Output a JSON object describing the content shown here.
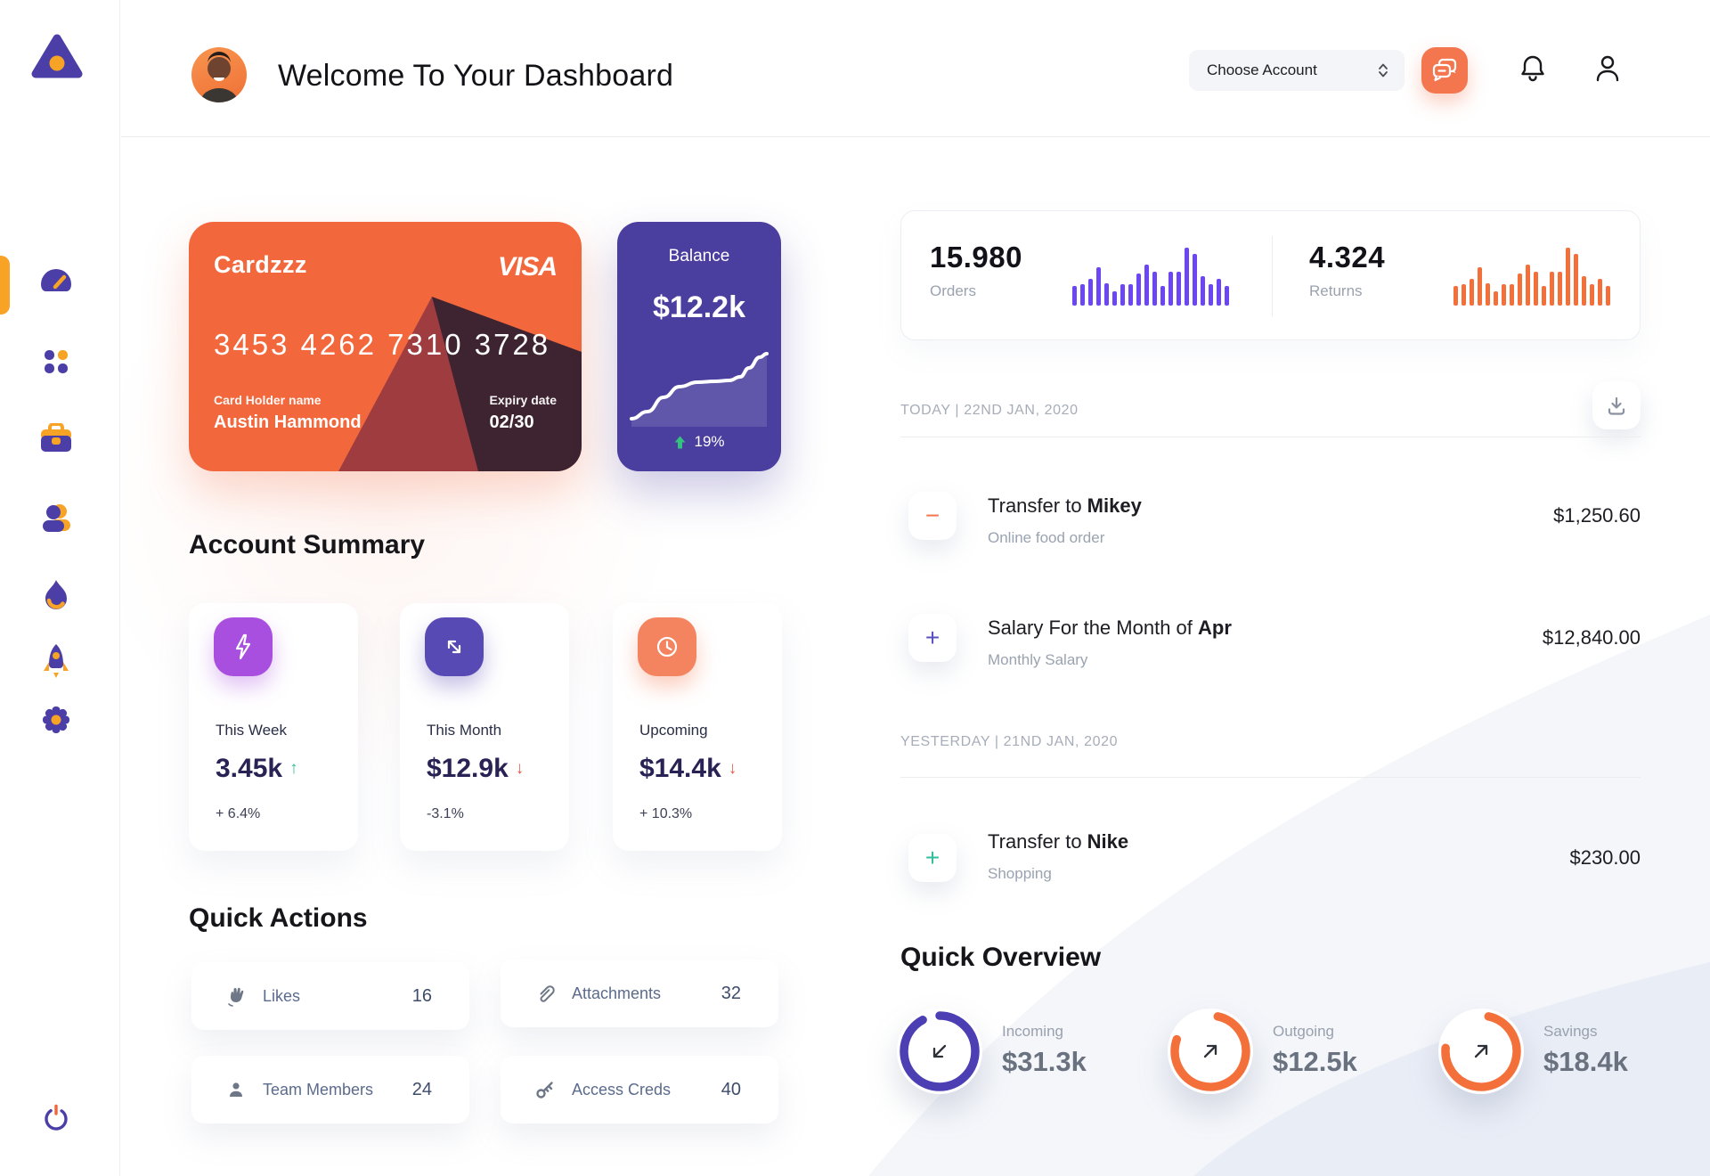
{
  "colors": {
    "sidebar_purple": "#4B3FA7",
    "accent_amber": "#F7A325",
    "bar_violet": "#6B46F2",
    "bar_orange": "#F4703B",
    "card_orange": "#F2683C",
    "balance_purple": "#4A3F9E",
    "green": "#2FBF8F",
    "red": "#E8594A"
  },
  "header": {
    "title": "Welcome To Your Dashboard",
    "account_selector": "Choose Account"
  },
  "credit_card": {
    "name": "Cardzzz",
    "brand": "VISA",
    "number": "3453 4262 7310 3728",
    "holder_label": "Card Holder name",
    "holder_name": "Austin Hammond",
    "expiry_label": "Expiry date",
    "expiry": "02/30"
  },
  "balance_card": {
    "label": "Balance",
    "value": "$12.2k",
    "change": "19%"
  },
  "stats": {
    "orders": {
      "value": "15.980",
      "label": "Orders"
    },
    "returns": {
      "value": "4.324",
      "label": "Returns"
    }
  },
  "chart_data": [
    {
      "type": "bar",
      "name": "orders-activity",
      "color": "#6B46F2",
      "ylim": [
        0,
        65
      ],
      "values": [
        22,
        24,
        30,
        43,
        25,
        16,
        24,
        24,
        36,
        46,
        38,
        22,
        38,
        38,
        65,
        58,
        33,
        24,
        30,
        22
      ]
    },
    {
      "type": "bar",
      "name": "returns-activity",
      "color": "#F4703B",
      "ylim": [
        0,
        65
      ],
      "values": [
        22,
        24,
        30,
        43,
        25,
        16,
        24,
        24,
        36,
        46,
        38,
        22,
        38,
        38,
        65,
        58,
        33,
        24,
        30,
        22
      ]
    },
    {
      "type": "line",
      "name": "balance-trend",
      "color": "#FFFFFF",
      "points": [
        [
          4,
          86
        ],
        [
          22,
          78
        ],
        [
          40,
          62
        ],
        [
          58,
          50
        ],
        [
          78,
          45
        ],
        [
          98,
          44
        ],
        [
          114,
          43
        ],
        [
          126,
          39
        ],
        [
          136,
          29
        ],
        [
          148,
          17
        ],
        [
          156,
          13
        ]
      ]
    },
    {
      "type": "donut",
      "name": "incoming",
      "percent": 92,
      "color": "#4C3FB3",
      "rotate": -90
    },
    {
      "type": "donut",
      "name": "outgoing",
      "percent": 77,
      "color": "#F4703B",
      "rotate": -78
    },
    {
      "type": "donut",
      "name": "savings",
      "percent": 73,
      "color": "#F4703B",
      "rotate": -78
    }
  ],
  "transactions": {
    "sections": [
      {
        "date_label": "TODAY | 22ND JAN, 2020",
        "rows": [
          {
            "sign": "−",
            "sign_color": "#F4764F",
            "title_prefix": "Transfer to ",
            "title_bold": "Mikey",
            "subtitle": "Online food order",
            "amount": "$1,250.60"
          },
          {
            "sign": "+",
            "sign_color": "#5B4FC0",
            "title_prefix": "Salary For the Month of ",
            "title_bold": "Apr",
            "subtitle": "Monthly Salary",
            "amount": "$12,840.00"
          }
        ]
      },
      {
        "date_label": "YESTERDAY | 21ND JAN, 2020",
        "rows": [
          {
            "sign": "+",
            "sign_color": "#2FBF9B",
            "title_prefix": "Transfer to ",
            "title_bold": "Nike",
            "subtitle": "Shopping",
            "amount": "$230.00"
          }
        ]
      }
    ]
  },
  "account_summary": {
    "heading": "Account Summary",
    "cards": [
      {
        "label": "This Week",
        "value": "3.45k",
        "arrow": "↑",
        "trend": "up",
        "delta": "+ 6.4%"
      },
      {
        "label": "This Month",
        "value": "$12.9k",
        "arrow": "↓",
        "trend": "down",
        "delta": "-3.1%"
      },
      {
        "label": "Upcoming",
        "value": "$14.4k",
        "arrow": "↓",
        "trend": "down",
        "delta": "+ 10.3%"
      }
    ]
  },
  "quick_actions": {
    "heading": "Quick Actions",
    "items": [
      {
        "label": "Likes",
        "count": "16"
      },
      {
        "label": "Attachments",
        "count": "32"
      },
      {
        "label": "Team Members",
        "count": "24"
      },
      {
        "label": "Access Creds",
        "count": "40"
      }
    ]
  },
  "quick_overview": {
    "heading": "Quick Overview",
    "items": [
      {
        "label": "Incoming",
        "value": "$31.3k"
      },
      {
        "label": "Outgoing",
        "value": "$12.5k"
      },
      {
        "label": "Savings",
        "value": "$18.4k"
      }
    ]
  }
}
